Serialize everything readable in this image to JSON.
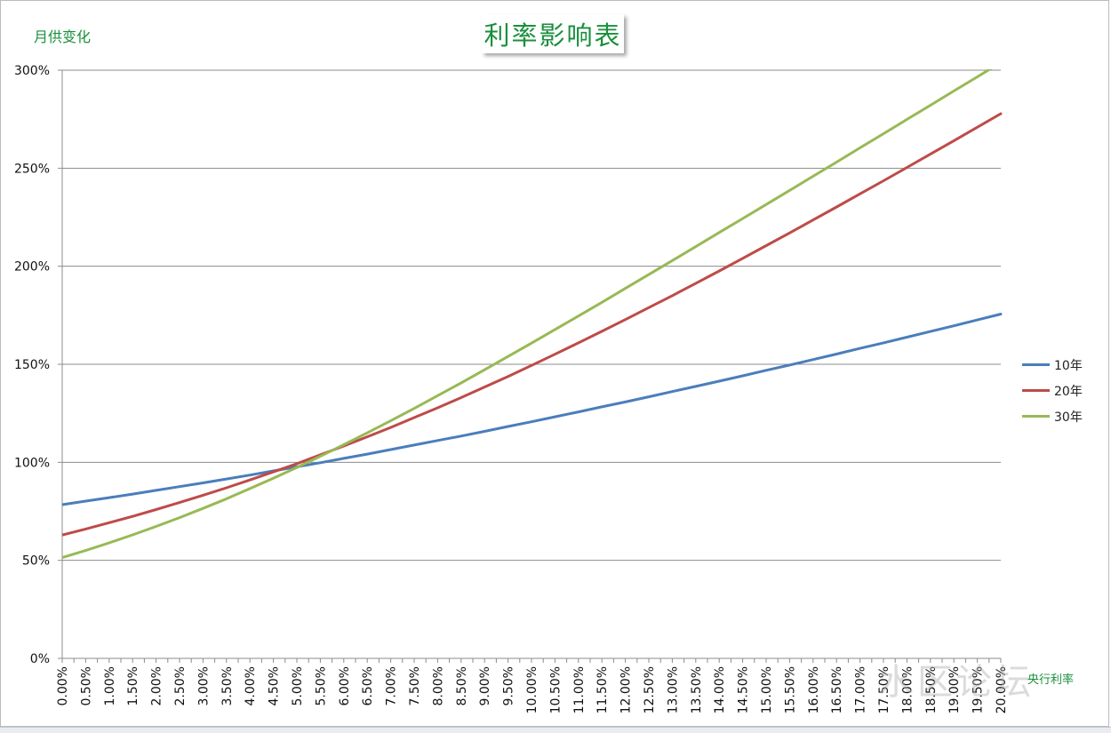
{
  "chart_data": {
    "type": "line",
    "title": "利率影响表",
    "ylabel": "月供变化",
    "xlabel": "央行利率",
    "ylim": [
      0,
      300
    ],
    "yticks": [
      "0%",
      "50%",
      "100%",
      "150%",
      "200%",
      "250%",
      "300%"
    ],
    "categories": [
      "0.00%",
      "0.50%",
      "1.00%",
      "1.50%",
      "2.00%",
      "2.50%",
      "3.00%",
      "3.50%",
      "4.00%",
      "4.50%",
      "5.00%",
      "5.50%",
      "6.00%",
      "6.50%",
      "7.00%",
      "7.50%",
      "8.00%",
      "8.50%",
      "9.00%",
      "9.50%",
      "10.00%",
      "10.50%",
      "11.00%",
      "11.50%",
      "12.00%",
      "12.50%",
      "13.00%",
      "13.50%",
      "14.00%",
      "14.50%",
      "15.00%",
      "15.50%",
      "16.00%",
      "16.50%",
      "17.00%",
      "17.50%",
      "18.00%",
      "18.50%",
      "19.00%",
      "19.50%",
      "20.00%"
    ],
    "x_values": [
      0,
      0.5,
      1,
      1.5,
      2,
      2.5,
      3,
      3.5,
      4,
      4.5,
      5,
      5.5,
      6,
      6.5,
      7,
      7.5,
      8,
      8.5,
      9,
      9.5,
      10,
      10.5,
      11,
      11.5,
      12,
      12.5,
      13,
      13.5,
      14,
      14.5,
      15,
      15.5,
      16,
      16.5,
      17,
      17.5,
      18,
      18.5,
      19,
      19.5,
      20
    ],
    "grid": true,
    "legend_position": "right",
    "series": [
      {
        "name": "10年",
        "color": "#4a7ebb",
        "values": [
          78.4,
          80.2,
          82.0,
          83.8,
          85.7,
          87.6,
          89.5,
          91.5,
          93.5,
          95.6,
          97.7,
          99.8,
          102.0,
          104.2,
          106.5,
          108.8,
          111.1,
          113.4,
          115.8,
          118.3,
          120.7,
          123.2,
          125.7,
          128.3,
          130.8,
          133.4,
          136.1,
          138.7,
          141.4,
          144.1,
          146.9,
          149.6,
          152.4,
          155.2,
          158.1,
          160.9,
          163.8,
          166.7,
          169.6,
          172.6,
          175.6
        ]
      },
      {
        "name": "20年",
        "color": "#be4b48",
        "values": [
          62.9,
          66.0,
          69.2,
          72.4,
          75.9,
          79.5,
          83.2,
          87.0,
          91.0,
          95.1,
          99.3,
          103.8,
          108.3,
          113.0,
          117.8,
          122.8,
          127.8,
          133.0,
          138.4,
          143.8,
          149.4,
          155.1,
          160.9,
          166.8,
          172.8,
          178.9,
          185.0,
          191.3,
          197.6,
          204.0,
          210.5,
          217.0,
          223.6,
          230.2,
          236.9,
          243.6,
          250.4,
          257.2,
          264.0,
          270.9,
          277.8
        ]
      },
      {
        "name": "30年",
        "color": "#98b954",
        "values": [
          51.4,
          55.0,
          58.9,
          63.0,
          67.3,
          71.8,
          76.5,
          81.4,
          86.6,
          91.9,
          97.4,
          103.1,
          109.0,
          115.0,
          121.2,
          127.5,
          134.0,
          140.5,
          147.2,
          154.0,
          160.8,
          167.7,
          174.6,
          181.6,
          188.7,
          195.8,
          202.9,
          210.0,
          217.2,
          224.3,
          231.5,
          238.7,
          245.9,
          253.1,
          260.4,
          267.6,
          274.9,
          282.1,
          289.4,
          296.6,
          303.9
        ]
      }
    ]
  },
  "watermark_text": "水区论坛"
}
